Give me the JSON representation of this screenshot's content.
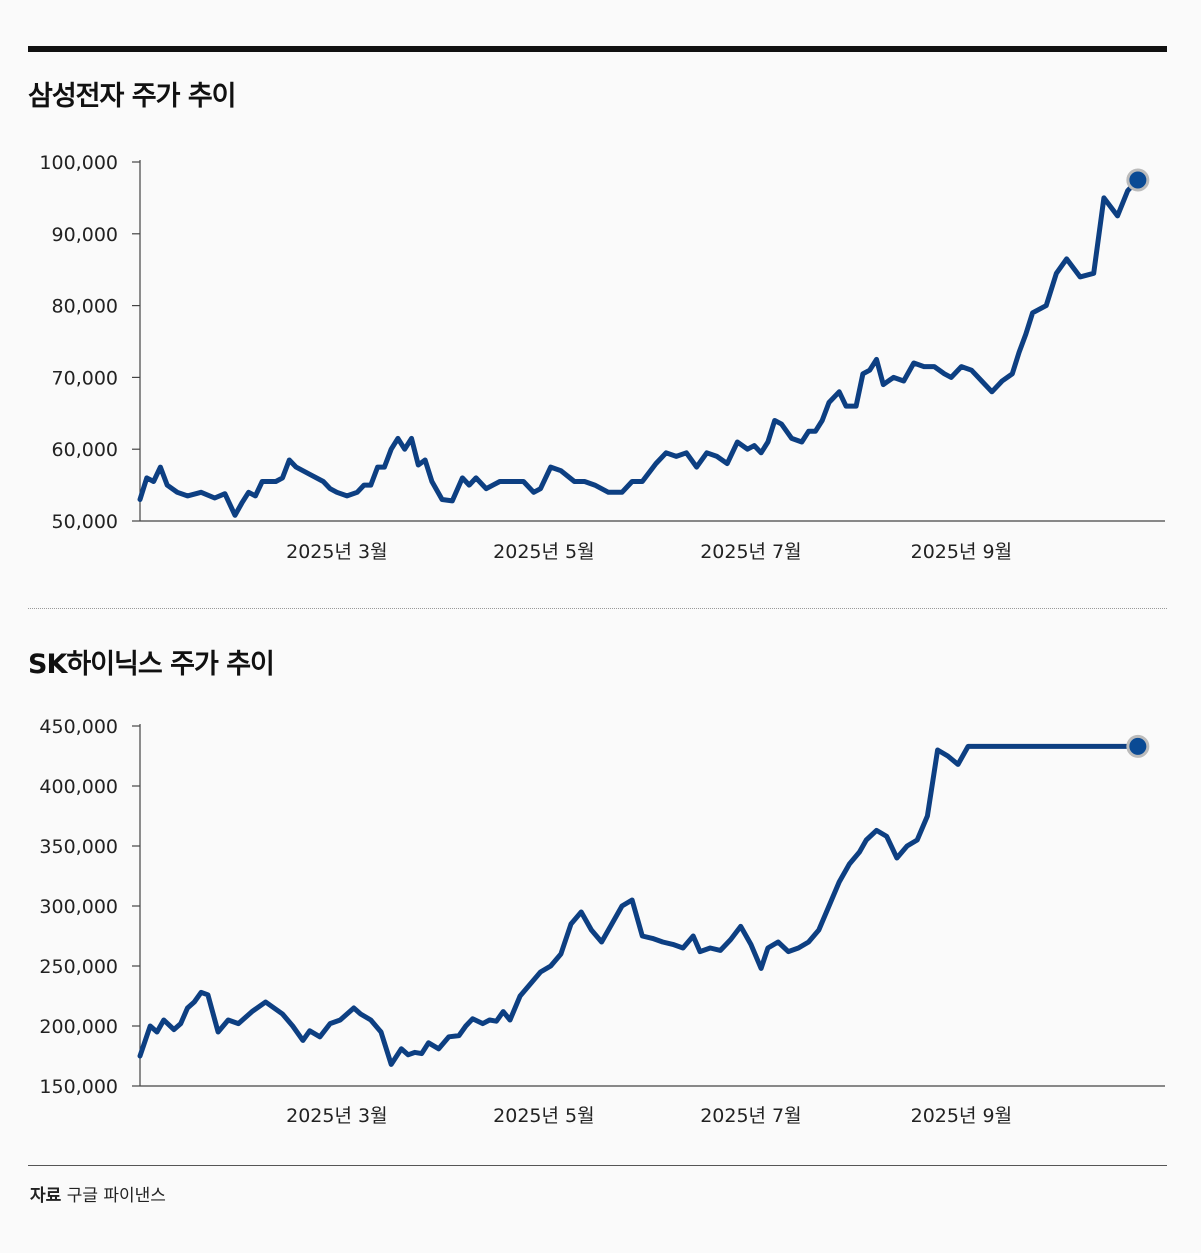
{
  "source": {
    "label": "자료",
    "value": "구글 파이낸스"
  },
  "colors": {
    "line": "#0d3f82",
    "marker": "#0a4a94",
    "marker_ring": "#bbbbbb",
    "axis": "#444444"
  },
  "chart_data": [
    {
      "type": "line",
      "title": "삼성전자 주가 추이",
      "xlabel": "",
      "ylabel": "",
      "x_ticks": [
        {
          "date": "2025-03-01",
          "label": "2025년 3월"
        },
        {
          "date": "2025-05-01",
          "label": "2025년 5월"
        },
        {
          "date": "2025-07-01",
          "label": "2025년 7월"
        },
        {
          "date": "2025-09-01",
          "label": "2025년 9월"
        }
      ],
      "y_ticks": [
        "50,000",
        "60,000",
        "70,000",
        "80,000",
        "90,000",
        "100,000"
      ],
      "xlim": [
        "2025-01-02",
        "2025-10-31"
      ],
      "ylim": [
        50000,
        100000
      ],
      "grid": false,
      "end_marker": true,
      "series": [
        {
          "x": [
            "2025-01-02",
            "2025-01-04",
            "2025-01-06",
            "2025-01-08",
            "2025-01-10",
            "2025-01-13",
            "2025-01-16",
            "2025-01-20",
            "2025-01-24",
            "2025-01-27",
            "2025-01-30",
            "2025-02-01",
            "2025-02-03",
            "2025-02-05",
            "2025-02-07",
            "2025-02-09",
            "2025-02-11",
            "2025-02-13",
            "2025-02-15",
            "2025-02-17",
            "2025-02-21",
            "2025-02-25",
            "2025-02-27",
            "2025-03-01",
            "2025-03-04",
            "2025-03-07",
            "2025-03-09",
            "2025-03-11",
            "2025-03-13",
            "2025-03-15",
            "2025-03-17",
            "2025-03-19",
            "2025-03-21",
            "2025-03-23",
            "2025-03-25",
            "2025-03-27",
            "2025-03-29",
            "2025-04-01",
            "2025-04-04",
            "2025-04-07",
            "2025-04-09",
            "2025-04-11",
            "2025-04-14",
            "2025-04-16",
            "2025-04-18",
            "2025-04-21",
            "2025-04-23",
            "2025-04-25",
            "2025-04-28",
            "2025-04-30",
            "2025-05-03",
            "2025-05-06",
            "2025-05-10",
            "2025-05-13",
            "2025-05-16",
            "2025-05-20",
            "2025-05-24",
            "2025-05-27",
            "2025-05-30",
            "2025-06-03",
            "2025-06-06",
            "2025-06-09",
            "2025-06-12",
            "2025-06-15",
            "2025-06-18",
            "2025-06-21",
            "2025-06-24",
            "2025-06-27",
            "2025-06-30",
            "2025-07-02",
            "2025-07-04",
            "2025-07-06",
            "2025-07-08",
            "2025-07-10",
            "2025-07-13",
            "2025-07-16",
            "2025-07-18",
            "2025-07-20",
            "2025-07-22",
            "2025-07-24",
            "2025-07-27",
            "2025-07-29",
            "2025-08-01",
            "2025-08-03",
            "2025-08-05",
            "2025-08-07",
            "2025-08-09",
            "2025-08-12",
            "2025-08-15",
            "2025-08-18",
            "2025-08-21",
            "2025-08-24",
            "2025-08-27",
            "2025-08-29",
            "2025-09-01",
            "2025-09-04",
            "2025-09-07",
            "2025-09-10",
            "2025-09-13",
            "2025-09-16",
            "2025-09-18",
            "2025-09-20",
            "2025-09-22",
            "2025-09-24",
            "2025-09-26",
            "2025-09-29",
            "2025-10-02",
            "2025-10-06",
            "2025-10-10",
            "2025-10-13",
            "2025-10-17",
            "2025-10-20",
            "2025-10-23"
          ],
          "y": [
            53000,
            56000,
            55500,
            57500,
            55000,
            54000,
            53500,
            54000,
            53200,
            53800,
            50800,
            52500,
            54000,
            53500,
            55500,
            55500,
            55500,
            56000,
            58500,
            57500,
            56500,
            55500,
            54500,
            54000,
            53500,
            54000,
            55000,
            55000,
            57500,
            57500,
            60000,
            61500,
            60000,
            61500,
            57800,
            58500,
            55500,
            53000,
            52800,
            56000,
            55000,
            56000,
            54500,
            55000,
            55500,
            55500,
            55500,
            55500,
            54000,
            54500,
            57500,
            57000,
            55500,
            55500,
            55000,
            54000,
            54000,
            55500,
            55500,
            58000,
            59500,
            59000,
            59500,
            57500,
            59500,
            59000,
            58000,
            61000,
            60000,
            60500,
            59500,
            61000,
            64000,
            63500,
            61500,
            61000,
            62500,
            62500,
            64000,
            66500,
            68000,
            66000,
            66000,
            70500,
            71000,
            72500,
            69000,
            70000,
            69500,
            72000,
            71500,
            71500,
            70500,
            70000,
            71500,
            71000,
            69500,
            68000,
            69500,
            70500,
            73500,
            76000,
            79000,
            79500,
            80000,
            84500,
            86500,
            84000,
            84500,
            95000,
            92500,
            96000,
            97500
          ]
        }
      ]
    },
    {
      "type": "line",
      "title": "SK하이닉스 주가 추이",
      "xlabel": "",
      "ylabel": "",
      "x_ticks": [
        {
          "date": "2025-03-01",
          "label": "2025년 3월"
        },
        {
          "date": "2025-05-01",
          "label": "2025년 5월"
        },
        {
          "date": "2025-07-01",
          "label": "2025년 7월"
        },
        {
          "date": "2025-09-01",
          "label": "2025년 9월"
        }
      ],
      "y_ticks": [
        "150,000",
        "200,000",
        "250,000",
        "300,000",
        "350,000",
        "400,000",
        "450,000"
      ],
      "xlim": [
        "2025-01-02",
        "2025-10-31"
      ],
      "ylim": [
        150000,
        450000
      ],
      "grid": false,
      "end_marker": true,
      "series": [
        {
          "x": [
            "2025-01-02",
            "2025-01-05",
            "2025-01-07",
            "2025-01-09",
            "2025-01-12",
            "2025-01-14",
            "2025-01-16",
            "2025-01-18",
            "2025-01-20",
            "2025-01-22",
            "2025-01-25",
            "2025-01-28",
            "2025-01-31",
            "2025-02-04",
            "2025-02-08",
            "2025-02-13",
            "2025-02-16",
            "2025-02-19",
            "2025-02-21",
            "2025-02-24",
            "2025-02-27",
            "2025-03-02",
            "2025-03-04",
            "2025-03-06",
            "2025-03-08",
            "2025-03-11",
            "2025-03-14",
            "2025-03-17",
            "2025-03-20",
            "2025-03-22",
            "2025-03-24",
            "2025-03-26",
            "2025-03-28",
            "2025-03-31",
            "2025-04-03",
            "2025-04-06",
            "2025-04-08",
            "2025-04-10",
            "2025-04-13",
            "2025-04-15",
            "2025-04-17",
            "2025-04-19",
            "2025-04-21",
            "2025-04-24",
            "2025-04-27",
            "2025-04-30",
            "2025-05-03",
            "2025-05-06",
            "2025-05-09",
            "2025-05-12",
            "2025-05-15",
            "2025-05-18",
            "2025-05-21",
            "2025-05-24",
            "2025-05-27",
            "2025-05-30",
            "2025-06-02",
            "2025-06-05",
            "2025-06-08",
            "2025-06-11",
            "2025-06-14",
            "2025-06-16",
            "2025-06-19",
            "2025-06-22",
            "2025-06-25",
            "2025-06-28",
            "2025-07-01",
            "2025-07-04",
            "2025-07-06",
            "2025-07-09",
            "2025-07-12",
            "2025-07-15",
            "2025-07-18",
            "2025-07-21",
            "2025-07-24",
            "2025-07-27",
            "2025-07-30",
            "2025-08-02",
            "2025-08-04",
            "2025-08-07",
            "2025-08-10",
            "2025-08-13",
            "2025-08-16",
            "2025-08-19",
            "2025-08-22",
            "2025-08-25",
            "2025-08-28",
            "2025-08-31",
            "2025-09-03",
            "2025-09-06",
            "2025-09-09",
            "2025-09-12",
            "2025-09-15",
            "2025-09-18",
            "2025-09-21",
            "2025-09-24",
            "2025-09-26",
            "2025-09-29",
            "2025-10-02",
            "2025-10-06",
            "2025-10-09",
            "2025-10-13",
            "2025-10-15",
            "2025-10-17",
            "2025-10-20",
            "2025-10-23"
          ],
          "y": [
            175000,
            200000,
            195000,
            205000,
            197000,
            202000,
            215000,
            220000,
            228000,
            226000,
            195000,
            205000,
            202000,
            212000,
            220000,
            210000,
            200000,
            188000,
            196000,
            191000,
            202000,
            205000,
            210000,
            215000,
            210000,
            205000,
            195000,
            168000,
            181000,
            176000,
            178000,
            177000,
            186000,
            181000,
            191000,
            192000,
            200000,
            206000,
            202000,
            205000,
            204000,
            212000,
            205000,
            225000,
            235000,
            245000,
            250000,
            260000,
            285000,
            295000,
            280000,
            270000,
            285000,
            300000,
            305000,
            275000,
            273000,
            270000,
            268000,
            265000,
            275000,
            262000,
            265000,
            263000,
            272000,
            283000,
            268000,
            248000,
            265000,
            270000,
            262000,
            265000,
            270000,
            280000,
            300000,
            320000,
            335000,
            345000,
            355000,
            363000,
            358000,
            340000,
            350000,
            355000,
            375000,
            430000,
            425000,
            418000,
            433000,
            433000,
            433000,
            433000,
            433000,
            433000,
            433000,
            433000,
            433000,
            433000,
            433000,
            433000,
            433000,
            433000,
            433000,
            433000,
            433000,
            433000
          ]
        }
      ]
    }
  ]
}
